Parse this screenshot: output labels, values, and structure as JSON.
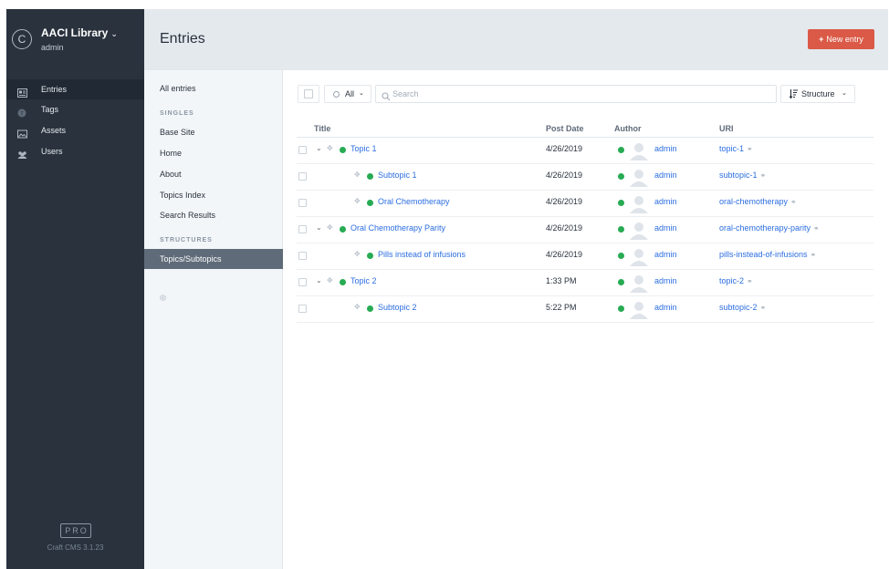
{
  "site": {
    "logo_letter": "C",
    "name": "AACI Library",
    "user": "admin"
  },
  "gnav": {
    "items": [
      {
        "label": "Entries",
        "icon": "entries-icon",
        "selected": true
      },
      {
        "label": "Tags",
        "icon": "tags-icon",
        "selected": false
      },
      {
        "label": "Assets",
        "icon": "assets-icon",
        "selected": false
      },
      {
        "label": "Users",
        "icon": "users-icon",
        "selected": false
      }
    ],
    "badge": "PRO",
    "version": "Craft CMS 3.1.23"
  },
  "header": {
    "title": "Entries",
    "new_entry_label": "New entry",
    "new_entry_color": "#da5a47"
  },
  "sources": {
    "all_entries": "All entries",
    "singles_heading": "SINGLES",
    "singles": [
      "Base Site",
      "Home",
      "About",
      "Topics Index",
      "Search Results"
    ],
    "structures_heading": "STRUCTURES",
    "structures": [
      "Topics/Subtopics"
    ],
    "selected": "Topics/Subtopics"
  },
  "toolbar": {
    "status_label": "All",
    "search_placeholder": "Search",
    "sort_label": "Structure"
  },
  "table": {
    "columns": [
      "Title",
      "Post Date",
      "Author",
      "URI"
    ],
    "rows": [
      {
        "title": "Topic 1",
        "level": 1,
        "post_date": "4/26/2019",
        "author": "admin",
        "uri": "topic-1"
      },
      {
        "title": "Subtopic 1",
        "level": 2,
        "post_date": "4/26/2019",
        "author": "admin",
        "uri": "subtopic-1"
      },
      {
        "title": "Oral Chemotherapy",
        "level": 2,
        "post_date": "4/26/2019",
        "author": "admin",
        "uri": "oral-chemotherapy"
      },
      {
        "title": "Oral Chemotherapy Parity",
        "level": 1,
        "post_date": "4/26/2019",
        "author": "admin",
        "uri": "oral-chemotherapy-parity"
      },
      {
        "title": "Pills instead of infusions",
        "level": 2,
        "post_date": "4/26/2019",
        "author": "admin",
        "uri": "pills-instead-of-infusions"
      },
      {
        "title": "Topic 2",
        "level": 1,
        "post_date": "1:33 PM",
        "author": "admin",
        "uri": "topic-2"
      },
      {
        "title": "Subtopic 2",
        "level": 2,
        "post_date": "5:22 PM",
        "author": "admin",
        "uri": "subtopic-2"
      }
    ]
  },
  "colors": {
    "link": "#2c6ee0",
    "status_enabled": "#27ab53",
    "nav_bg": "#29323d"
  }
}
